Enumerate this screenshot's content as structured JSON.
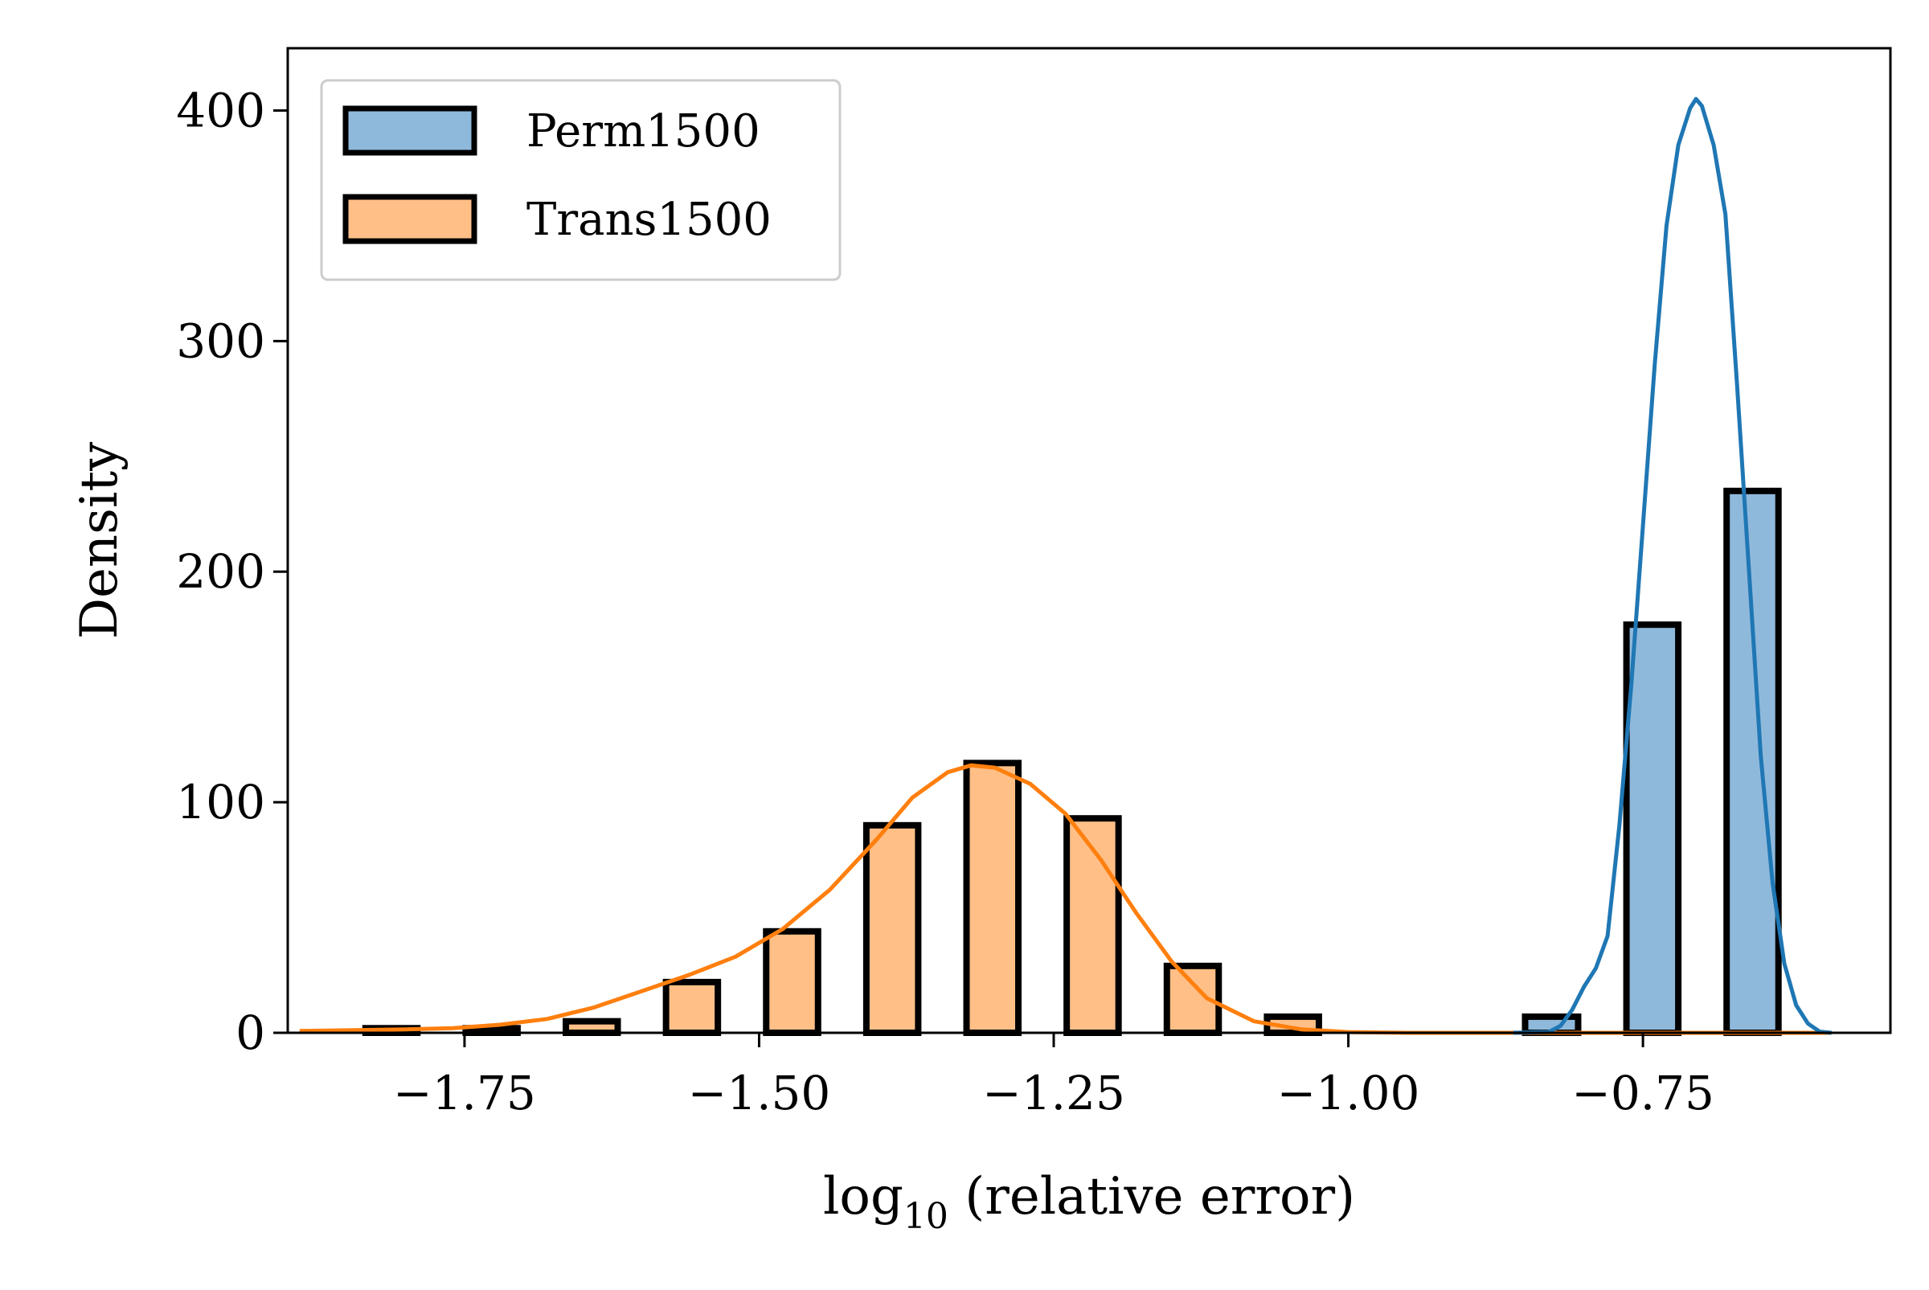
{
  "chart_data": {
    "type": "bar",
    "title": "",
    "xlabel": "log",
    "xlabel_sub": "10",
    "xlabel_rest": " (relative error)",
    "ylabel": "Density",
    "xlim": [
      -1.9,
      -0.54
    ],
    "ylim": [
      0,
      427
    ],
    "xticks": [
      -1.75,
      -1.5,
      -1.25,
      -1.0,
      -0.75
    ],
    "xtick_labels": [
      "−1.75",
      "−1.50",
      "−1.25",
      "−1.00",
      "−0.75"
    ],
    "yticks": [
      0,
      100,
      200,
      300,
      400
    ],
    "ytick_labels": [
      "0",
      "100",
      "200",
      "300",
      "400"
    ],
    "grid": false,
    "legend_position": "top-left",
    "series": [
      {
        "name": "Perm1500",
        "color": "#8fb9db",
        "line_color": "#1f77b4",
        "bins": [
          {
            "x0": -0.85,
            "x1": -0.805,
            "value": 7
          },
          {
            "x0": -0.764,
            "x1": -0.72,
            "value": 177
          },
          {
            "x0": -0.679,
            "x1": -0.635,
            "value": 235
          }
        ],
        "kde": [
          [
            -0.86,
            0
          ],
          [
            -0.83,
            0.3
          ],
          [
            -0.82,
            3
          ],
          [
            -0.81,
            10
          ],
          [
            -0.8,
            20
          ],
          [
            -0.79,
            28
          ],
          [
            -0.78,
            42
          ],
          [
            -0.77,
            90
          ],
          [
            -0.76,
            150
          ],
          [
            -0.75,
            220
          ],
          [
            -0.74,
            290
          ],
          [
            -0.73,
            350
          ],
          [
            -0.72,
            385
          ],
          [
            -0.71,
            401
          ],
          [
            -0.705,
            405
          ],
          [
            -0.7,
            402
          ],
          [
            -0.69,
            385
          ],
          [
            -0.68,
            355
          ],
          [
            -0.67,
            280
          ],
          [
            -0.66,
            200
          ],
          [
            -0.65,
            120
          ],
          [
            -0.64,
            65
          ],
          [
            -0.63,
            30
          ],
          [
            -0.62,
            12
          ],
          [
            -0.61,
            4
          ],
          [
            -0.6,
            0.5
          ],
          [
            -0.59,
            0
          ]
        ]
      },
      {
        "name": "Trans1500",
        "color": "#ffbf87",
        "line_color": "#ff7f0e",
        "bins": [
          {
            "x0": -1.834,
            "x1": -1.79,
            "value": 2
          },
          {
            "x0": -1.749,
            "x1": -1.705,
            "value": 2
          },
          {
            "x0": -1.664,
            "x1": -1.62,
            "value": 5
          },
          {
            "x0": -1.579,
            "x1": -1.535,
            "value": 22
          },
          {
            "x0": -1.494,
            "x1": -1.45,
            "value": 44
          },
          {
            "x0": -1.409,
            "x1": -1.365,
            "value": 90
          },
          {
            "x0": -1.324,
            "x1": -1.28,
            "value": 117
          },
          {
            "x0": -1.239,
            "x1": -1.195,
            "value": 93
          },
          {
            "x0": -1.154,
            "x1": -1.11,
            "value": 29
          },
          {
            "x0": -1.069,
            "x1": -1.025,
            "value": 7
          }
        ],
        "kde": [
          [
            -1.89,
            0.8
          ],
          [
            -1.84,
            1.2
          ],
          [
            -1.8,
            1.5
          ],
          [
            -1.76,
            2
          ],
          [
            -1.72,
            3.5
          ],
          [
            -1.68,
            6
          ],
          [
            -1.64,
            11
          ],
          [
            -1.6,
            18
          ],
          [
            -1.56,
            25
          ],
          [
            -1.52,
            33
          ],
          [
            -1.48,
            45
          ],
          [
            -1.44,
            62
          ],
          [
            -1.4,
            84
          ],
          [
            -1.37,
            102
          ],
          [
            -1.34,
            113
          ],
          [
            -1.32,
            116
          ],
          [
            -1.3,
            115
          ],
          [
            -1.27,
            108
          ],
          [
            -1.24,
            95
          ],
          [
            -1.21,
            75
          ],
          [
            -1.18,
            52
          ],
          [
            -1.15,
            31
          ],
          [
            -1.12,
            15
          ],
          [
            -1.08,
            5
          ],
          [
            -1.04,
            1.5
          ],
          [
            -1.0,
            0.3
          ],
          [
            -0.95,
            0
          ],
          [
            -0.85,
            0
          ],
          [
            -0.75,
            0
          ],
          [
            -0.59,
            0
          ]
        ]
      }
    ]
  }
}
